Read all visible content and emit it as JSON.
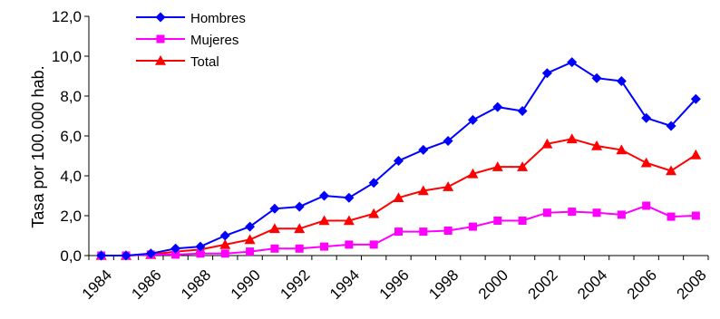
{
  "chart_data": {
    "type": "line",
    "title": "",
    "xlabel": "",
    "ylabel": "Tasa por 100.000 hab.",
    "ylim": [
      0,
      12
    ],
    "yticks": [
      "0,0",
      "2,0",
      "4,0",
      "6,0",
      "8,0",
      "10,0",
      "12,0"
    ],
    "ytick_values": [
      0,
      2,
      4,
      6,
      8,
      10,
      12
    ],
    "xtick_labels": [
      "1984",
      "1986",
      "1988",
      "1990",
      "1992",
      "1994",
      "1996",
      "1998",
      "2000",
      "2002",
      "2004",
      "2006",
      "2008"
    ],
    "x": [
      1984,
      1985,
      1986,
      1987,
      1988,
      1989,
      1990,
      1991,
      1992,
      1993,
      1994,
      1995,
      1996,
      1997,
      1998,
      1999,
      2000,
      2001,
      2002,
      2003,
      2004,
      2005,
      2006,
      2007,
      2008
    ],
    "grid": false,
    "legend_position": "top-left",
    "series": [
      {
        "name": "Hombres",
        "color": "#0000ff",
        "marker": "diamond",
        "values": [
          0.0,
          0.0,
          0.1,
          0.35,
          0.45,
          1.0,
          1.45,
          2.35,
          2.45,
          3.0,
          2.9,
          3.65,
          4.75,
          5.3,
          5.75,
          6.8,
          7.45,
          7.25,
          9.15,
          9.7,
          8.9,
          8.75,
          6.9,
          6.5,
          7.85
        ]
      },
      {
        "name": "Mujeres",
        "color": "#ff00ff",
        "marker": "square",
        "values": [
          0.0,
          0.0,
          0.05,
          0.05,
          0.1,
          0.1,
          0.2,
          0.35,
          0.35,
          0.45,
          0.55,
          0.55,
          1.2,
          1.2,
          1.25,
          1.45,
          1.75,
          1.75,
          2.15,
          2.2,
          2.15,
          2.05,
          2.5,
          1.95,
          2.0
        ]
      },
      {
        "name": "Total",
        "color": "#ff0000",
        "marker": "triangle",
        "values": [
          0.0,
          0.0,
          0.05,
          0.2,
          0.3,
          0.55,
          0.8,
          1.35,
          1.35,
          1.75,
          1.75,
          2.1,
          2.9,
          3.25,
          3.45,
          4.1,
          4.45,
          4.45,
          5.6,
          5.85,
          5.5,
          5.3,
          4.65,
          4.25,
          5.05
        ]
      }
    ]
  }
}
